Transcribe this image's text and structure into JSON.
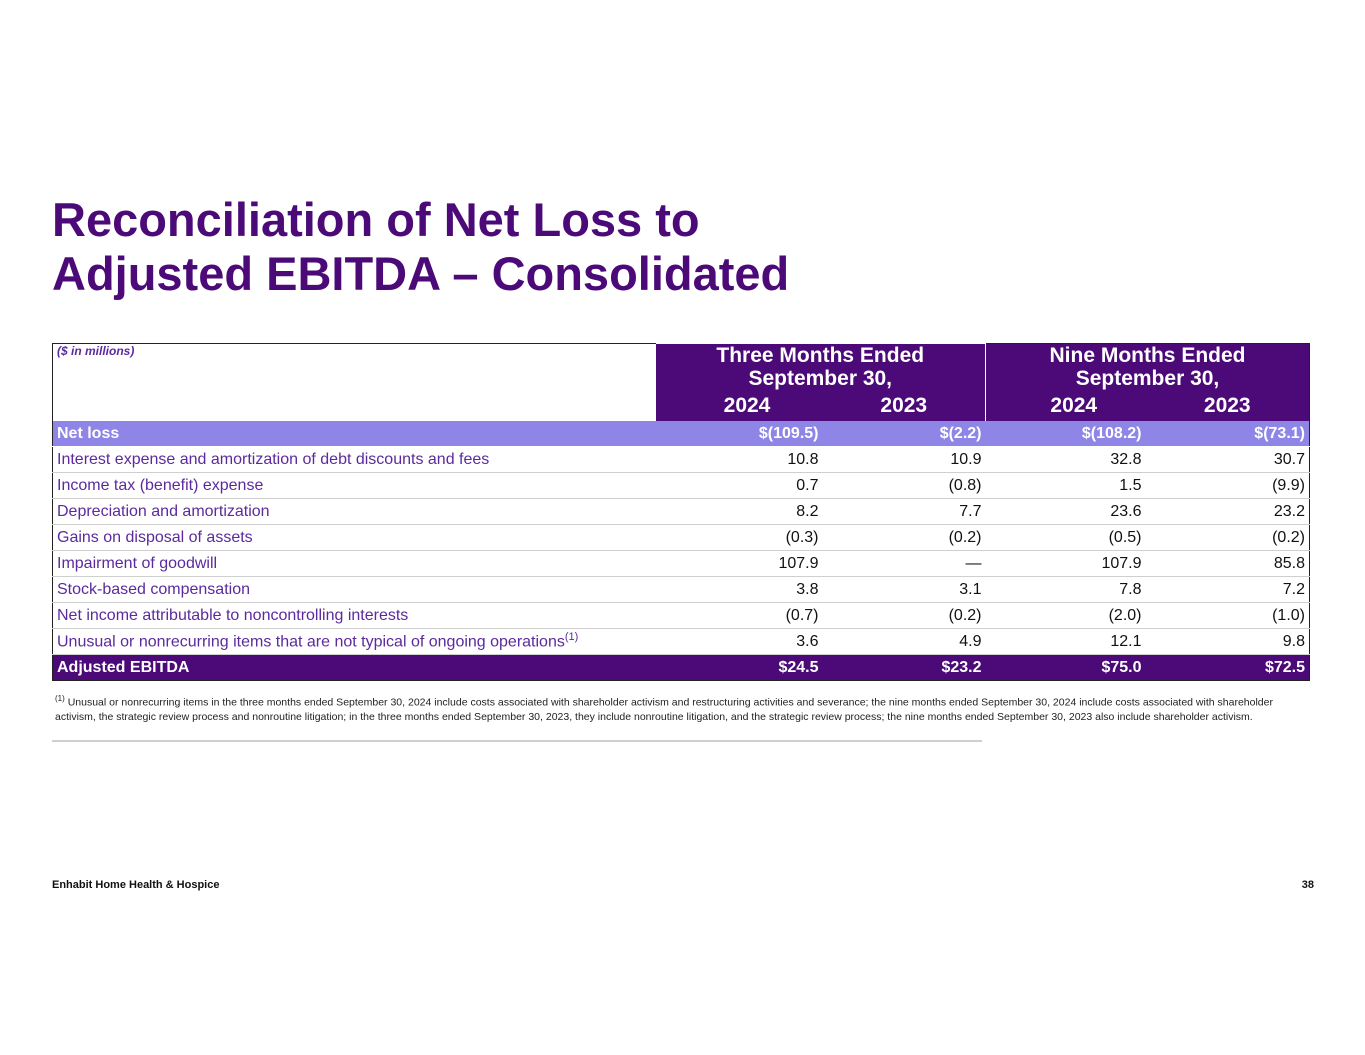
{
  "title": {
    "line1": "Reconciliation of Net Loss to",
    "line2": "Adjusted EBITDA – Consolidated"
  },
  "table": {
    "units_label": "($ in millions)",
    "periods": [
      {
        "line1": "Three Months Ended",
        "line2": "September 30,"
      },
      {
        "line1": "Nine Months Ended",
        "line2": "September 30,"
      }
    ],
    "years": [
      "2024",
      "2023",
      "2024",
      "2023"
    ],
    "rows": [
      {
        "label": "Net loss",
        "values": [
          "$(109.5)",
          "$(2.2)",
          "$(108.2)",
          "$(73.1)"
        ]
      },
      {
        "label": "Interest expense and amortization of debt discounts and fees",
        "values": [
          "10.8",
          "10.9",
          "32.8",
          "30.7"
        ]
      },
      {
        "label": "Income tax (benefit) expense",
        "values": [
          "0.7",
          "(0.8)",
          "1.5",
          "(9.9)"
        ]
      },
      {
        "label": "Depreciation and amortization",
        "values": [
          "8.2",
          "7.7",
          "23.6",
          "23.2"
        ]
      },
      {
        "label": "Gains on disposal of assets",
        "values": [
          "(0.3)",
          "(0.2)",
          "(0.5)",
          "(0.2)"
        ]
      },
      {
        "label": "Impairment of goodwill",
        "values": [
          "107.9",
          "—",
          "107.9",
          "85.8"
        ]
      },
      {
        "label": "Stock-based compensation",
        "values": [
          "3.8",
          "3.1",
          "7.8",
          "7.2"
        ]
      },
      {
        "label": "Net income attributable to noncontrolling interests",
        "values": [
          "(0.7)",
          "(0.2)",
          "(2.0)",
          "(1.0)"
        ]
      },
      {
        "label": "Unusual or nonrecurring items that are not typical of ongoing operations",
        "footnote_ref": "(1)",
        "values": [
          "3.6",
          "4.9",
          "12.1",
          "9.8"
        ]
      },
      {
        "label": "Adjusted EBITDA",
        "values": [
          "$24.5",
          "$23.2",
          "$75.0",
          "$72.5"
        ]
      }
    ]
  },
  "footnote": {
    "marker": "(1)",
    "text": "Unusual or nonrecurring items in the three months ended September 30, 2024 include costs associated with shareholder activism and restructuring activities and severance; the nine months ended September 30, 2024 include costs associated with shareholder activism, the strategic review process and nonroutine litigation; in the three months ended September 30, 2023, they include nonroutine litigation, and the strategic review process; the nine months ended September 30, 2023 also include shareholder activism."
  },
  "footer": {
    "company": "Enhabit Home Health & Hospice",
    "page_number": "38"
  },
  "colors": {
    "brand_purple": "#4b0a78",
    "highlight_lavender": "#8e85e6",
    "label_purple": "#5c2a9d"
  }
}
